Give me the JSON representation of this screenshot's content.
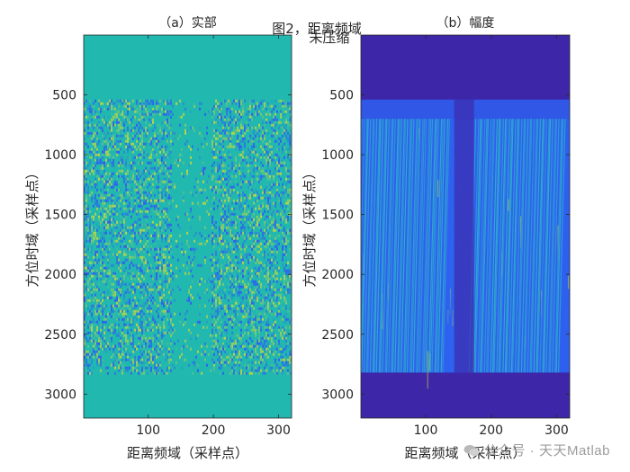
{
  "figure": {
    "suptitle_line1": "图2，距离频域",
    "suptitle_line2": "未压缩"
  },
  "colors": {
    "real_base": "#21b8b0",
    "amp_low": "#3d26a8",
    "amp_mid": "#2e60f0",
    "amp_high": "#2dc4c0",
    "amp_peak": "#c8d83a",
    "axis": "#262626"
  },
  "chart_data": [
    {
      "type": "heatmap",
      "title": "（a）实部",
      "xlabel": "距离频域（采样点）",
      "ylabel": "方位时域（采样点）",
      "xlim": [
        1,
        320
      ],
      "ylim": [
        1,
        3200
      ],
      "y_reversed": true,
      "xticks": [
        100,
        200,
        300
      ],
      "yticks": [
        500,
        1000,
        1500,
        2000,
        2500,
        3000
      ],
      "signal_rows": [
        540,
        2820
      ],
      "low_texture_columns": [
        135,
        195
      ]
    },
    {
      "type": "heatmap",
      "title": "（b）幅度",
      "xlabel": "距离频域（采样点）",
      "ylabel": "方位时域（采样点）",
      "xlim": [
        1,
        320
      ],
      "ylim": [
        1,
        3200
      ],
      "y_reversed": true,
      "xticks": [
        100,
        200,
        300
      ],
      "yticks": [
        500,
        1000,
        1500,
        2000,
        2500,
        3000
      ],
      "signal_rows": [
        540,
        2820
      ],
      "weak_band_rows": [
        540,
        700
      ],
      "dark_center_column": 160
    }
  ],
  "watermark": "公众号 · 天天Matlab"
}
